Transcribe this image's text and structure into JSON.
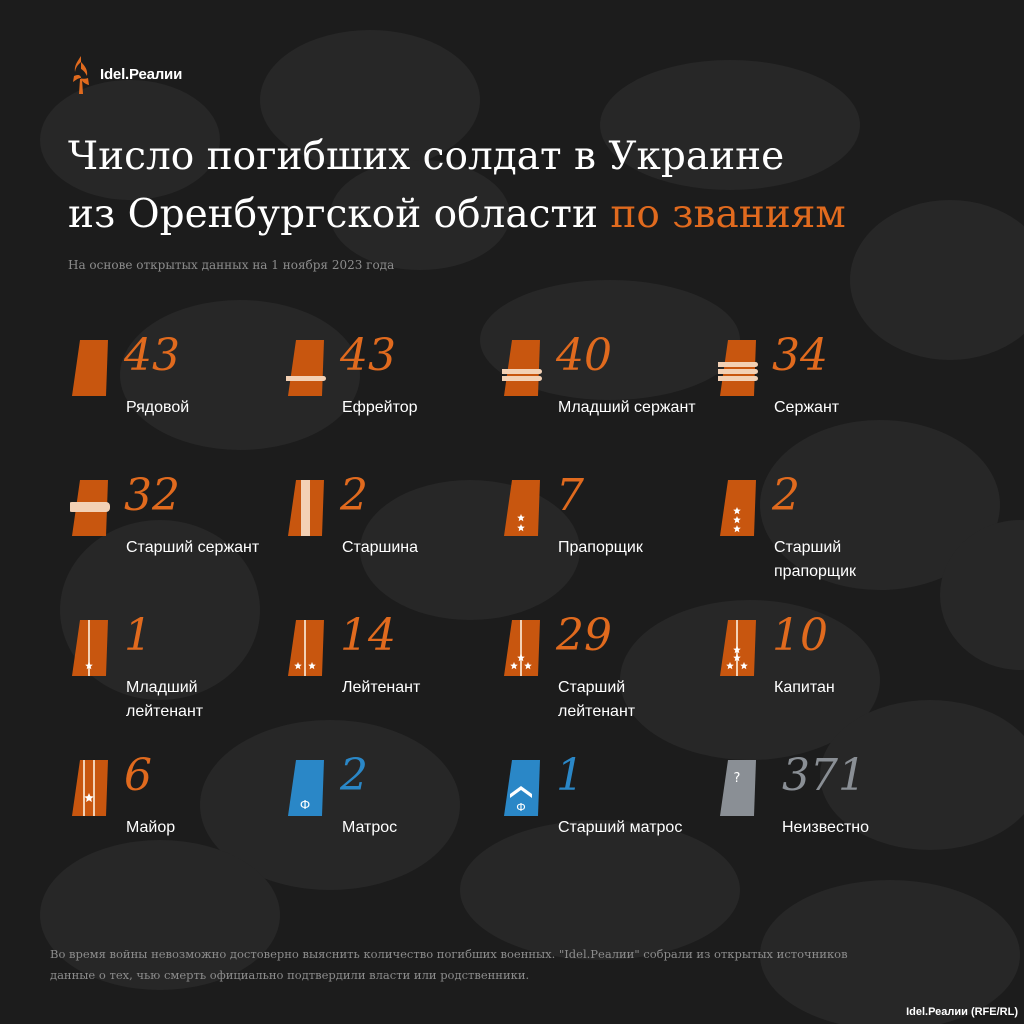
{
  "header": {
    "logo_text": "Idel.Реалии",
    "title_line1": "Число погибших солдат в Украине",
    "title_line2": "из Оренбургской области",
    "title_accent": "по званиям",
    "subtitle": "На основе открытых данных на 1 ноября 2023 года"
  },
  "ranks": [
    {
      "value": "43",
      "label": "Рядовой",
      "insignia": "private-strap",
      "color": "#e06a1e"
    },
    {
      "value": "43",
      "label": "Ефрейтор",
      "insignia": "lance-corporal-strap",
      "color": "#e06a1e"
    },
    {
      "value": "40",
      "label": "Младший сержант",
      "insignia": "junior-sergeant-strap",
      "color": "#e06a1e"
    },
    {
      "value": "34",
      "label": "Сержант",
      "insignia": "sergeant-strap",
      "color": "#e06a1e"
    },
    {
      "value": "32",
      "label": "Старший сержант",
      "insignia": "senior-sergeant-strap",
      "color": "#e06a1e"
    },
    {
      "value": "2",
      "label": "Старшина",
      "insignia": "sergeant-major-strap",
      "color": "#e06a1e"
    },
    {
      "value": "7",
      "label": "Прапорщик",
      "insignia": "warrant-officer-strap",
      "color": "#e06a1e"
    },
    {
      "value": "2",
      "label": "Старший прапорщик",
      "insignia": "senior-warrant-officer-strap",
      "color": "#e06a1e"
    },
    {
      "value": "1",
      "label": "Младший лейтенант",
      "insignia": "junior-lieutenant-strap",
      "color": "#e06a1e"
    },
    {
      "value": "14",
      "label": "Лейтенант",
      "insignia": "lieutenant-strap",
      "color": "#e06a1e"
    },
    {
      "value": "29",
      "label": "Старший лейтенант",
      "insignia": "senior-lieutenant-strap",
      "color": "#e06a1e"
    },
    {
      "value": "10",
      "label": "Капитан",
      "insignia": "captain-strap",
      "color": "#e06a1e"
    },
    {
      "value": "6",
      "label": "Майор",
      "insignia": "major-strap",
      "color": "#e06a1e"
    },
    {
      "value": "2",
      "label": "Матрос",
      "insignia": "sailor-strap",
      "color": "#2a87c7"
    },
    {
      "value": "1",
      "label": "Старший матрос",
      "insignia": "senior-sailor-strap",
      "color": "#2a87c7"
    },
    {
      "value": "371",
      "label": "Неизвестно",
      "insignia": "unknown-strap",
      "color": "#8a8f95"
    }
  ],
  "insignia_text": {
    "navy_letter": "Ф",
    "unknown_mark": "?"
  },
  "footer": {
    "note_line1": "Во время войны невозможно достоверно выяснить количество погибших военных. \"Idel.Реалии\" собрали из открытых источников",
    "note_line2": "данные о тех, чью смерть официально подтвердили власти или родственники.",
    "credit": "Idel.Реалии (RFE/RL)"
  }
}
